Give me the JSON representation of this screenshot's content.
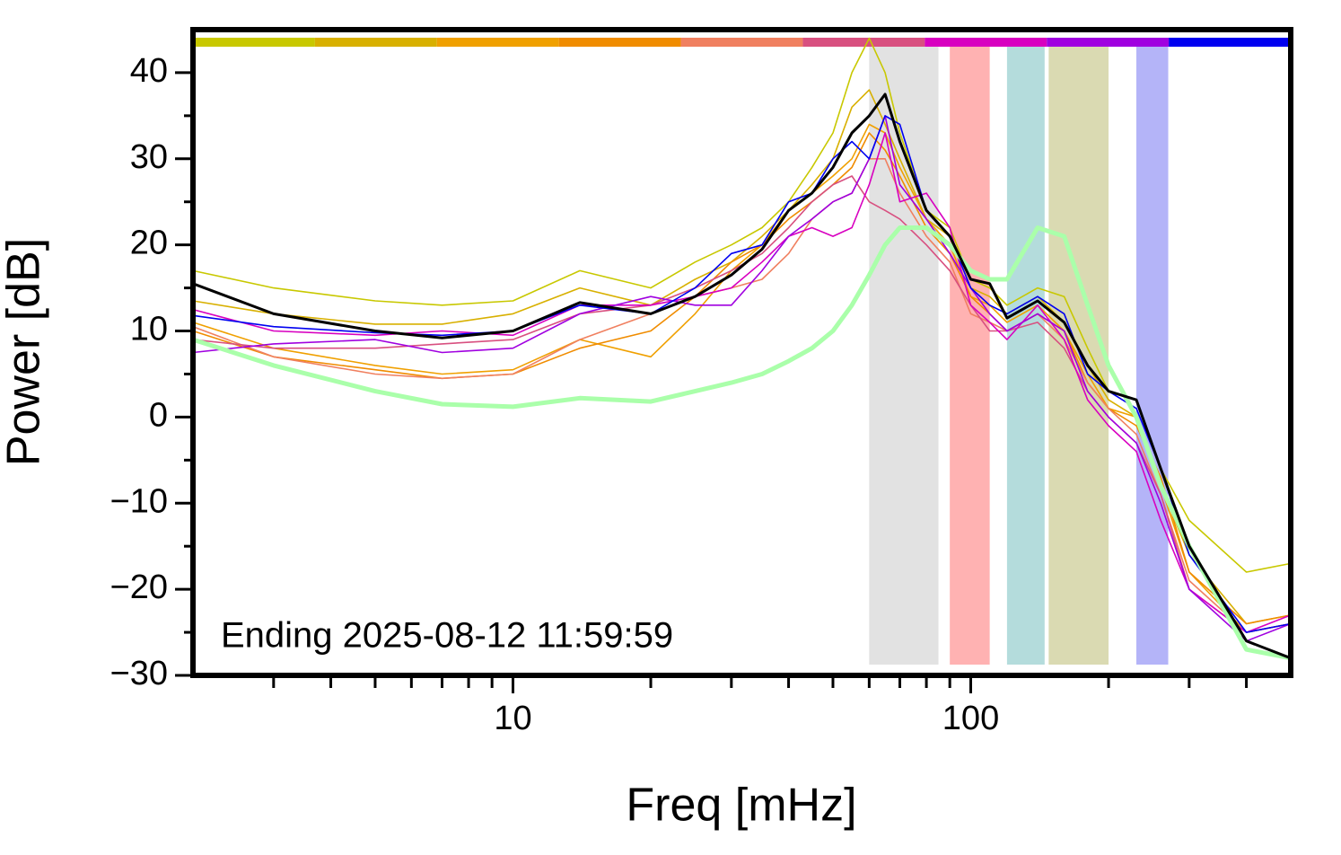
{
  "chart_data": {
    "type": "line",
    "xlabel": "Freq [mHz]",
    "ylabel": "Power [dB]",
    "annotation": "Ending 2025-08-12 11:59:59",
    "xlog": true,
    "xlim": [
      2,
      500
    ],
    "xticks": [
      10,
      100
    ],
    "xminor_ticks": [
      3,
      4,
      5,
      6,
      7,
      8,
      9,
      20,
      30,
      40,
      50,
      60,
      70,
      80,
      90,
      200,
      300,
      400
    ],
    "ylim": [
      -30,
      45
    ],
    "yticks": [
      {
        "value": -30,
        "label": "−30"
      },
      {
        "value": -20,
        "label": "−20"
      },
      {
        "value": -10,
        "label": "−10"
      },
      0,
      10,
      20,
      30,
      40
    ],
    "yminor_ticks": [
      -25,
      -15,
      -5,
      5,
      15,
      25,
      35
    ],
    "bands": [
      {
        "xlim": [
          60,
          85
        ],
        "color": "#e2e2e2"
      },
      {
        "xlim": [
          90,
          110
        ],
        "color": "#ffb2b2"
      },
      {
        "xlim": [
          120,
          145
        ],
        "color": "#b4dcdc"
      },
      {
        "xlim": [
          148,
          200
        ],
        "color": "#dadab2"
      },
      {
        "xlim": [
          230,
          270
        ],
        "color": "#b4b4f8"
      }
    ],
    "x": [
      2,
      3,
      5,
      7,
      10,
      14,
      20,
      25,
      30,
      35,
      40,
      45,
      50,
      55,
      60,
      65,
      70,
      80,
      90,
      100,
      110,
      120,
      140,
      160,
      180,
      200,
      230,
      260,
      300,
      400,
      500
    ],
    "series": [
      {
        "color": "#c8c800",
        "values": [
          17,
          15,
          13.5,
          13,
          13.5,
          17,
          15,
          18,
          20,
          22,
          25,
          29,
          33,
          40,
          44,
          40,
          33,
          24,
          22,
          16,
          15,
          13,
          15,
          14,
          8,
          3,
          2,
          -6,
          -12,
          -18,
          -17
        ]
      },
      {
        "color": "#d8b000",
        "values": [
          13.5,
          12,
          10.8,
          10.8,
          12,
          15,
          13,
          16,
          18,
          21,
          24,
          27,
          30,
          36,
          38,
          34,
          30,
          23,
          21,
          15,
          14,
          12,
          14,
          11,
          6,
          2,
          0,
          -8,
          -16,
          -24,
          -23
        ]
      },
      {
        "color": "#f0a000",
        "values": [
          11,
          8,
          6,
          5,
          5.5,
          9,
          7,
          12,
          17,
          20,
          24,
          26,
          28,
          30,
          34,
          33,
          29,
          23,
          20,
          14,
          13,
          11,
          13,
          10,
          5,
          1,
          0,
          -8,
          -18,
          -25,
          -24
        ]
      },
      {
        "color": "#f08c00",
        "values": [
          10,
          7,
          5.5,
          4.5,
          5,
          8,
          10,
          14,
          18,
          20,
          23,
          25,
          27,
          29,
          33,
          31,
          28,
          22,
          19,
          14,
          12,
          10,
          12,
          10,
          4,
          1,
          -1,
          -7,
          -18,
          -24,
          -23
        ]
      },
      {
        "color": "#f08060",
        "values": [
          10.5,
          7,
          5,
          4.5,
          5,
          9,
          12,
          14,
          15,
          16,
          19,
          23,
          25,
          26,
          30,
          30,
          26,
          21,
          18,
          12,
          11,
          10,
          12,
          9,
          4,
          1,
          -2,
          -9,
          -19,
          -25,
          -24
        ]
      },
      {
        "color": "#d85080",
        "values": [
          9,
          8,
          8,
          8.5,
          9,
          12,
          13,
          15,
          17,
          19,
          22,
          25,
          27,
          28,
          25,
          24,
          23,
          20,
          17,
          13,
          10,
          10,
          11,
          8,
          3,
          0,
          -3,
          -9,
          -20,
          -25,
          -24
        ]
      },
      {
        "color": "#d800c0",
        "values": [
          12.5,
          10,
          9.5,
          10,
          9.5,
          13,
          13,
          14,
          15,
          18,
          21,
          22,
          21,
          22,
          27,
          33,
          25,
          26,
          22,
          13,
          11,
          9,
          13,
          9,
          2,
          -1,
          -4,
          -12,
          -20,
          -25,
          -23
        ]
      },
      {
        "color": "#a000e0",
        "values": [
          7.5,
          8.5,
          9,
          7.5,
          8,
          12,
          14,
          13,
          13,
          17,
          21,
          23,
          25,
          26,
          30,
          35,
          27,
          23,
          19,
          15,
          12,
          10,
          12,
          10,
          3,
          0,
          -3,
          -10,
          -20,
          -26,
          -24
        ]
      },
      {
        "color": "#0000f0",
        "values": [
          11.8,
          10.5,
          9.8,
          9.5,
          10,
          13,
          12,
          15,
          19,
          20,
          25,
          26,
          30,
          32,
          30,
          35,
          34,
          24,
          21,
          15,
          13,
          12,
          14,
          12,
          5,
          3,
          1,
          -6,
          -16,
          -25,
          -24
        ]
      },
      {
        "color": "#aaffaa",
        "width": 5,
        "values": [
          9,
          6,
          3,
          1.5,
          1.2,
          2.2,
          1.8,
          3,
          4,
          5,
          6.5,
          8,
          10,
          13,
          16.5,
          20,
          22,
          22,
          20,
          17,
          16,
          16,
          22,
          21,
          13,
          6,
          0,
          -8,
          -15,
          -27,
          -28
        ]
      },
      {
        "color": "#000000",
        "width": 3,
        "values": [
          15.5,
          12,
          10,
          9.2,
          10,
          13.3,
          12,
          14,
          16.5,
          19.5,
          24,
          26,
          29,
          33,
          35,
          37.5,
          32,
          24,
          21,
          16,
          15.5,
          11.5,
          13.5,
          11,
          6,
          3,
          2,
          -6,
          -15,
          -26,
          -28
        ]
      }
    ]
  }
}
